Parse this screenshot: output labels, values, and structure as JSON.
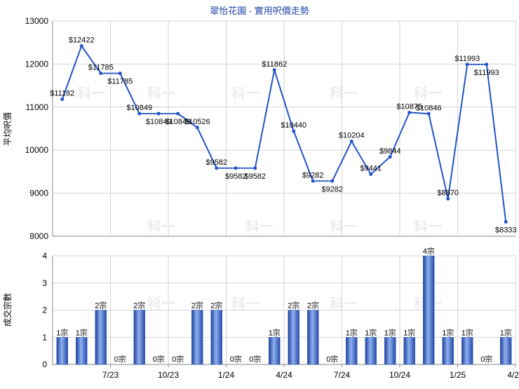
{
  "chart_data": [
    {
      "type": "line",
      "title": "翠怡花園 - 實用呎價走勢",
      "xlabel": "",
      "ylabel": "平均呎價",
      "ylim": [
        8000,
        13000
      ],
      "yticks": [
        "13000",
        "12000",
        "11000",
        "10000",
        "9000",
        "8000"
      ],
      "xticks": [
        "7/23",
        "10/23",
        "1/24",
        "4/24",
        "7/24",
        "10/24",
        "1/25",
        "4/25"
      ],
      "grid": true,
      "points": [
        {
          "v": 11182,
          "label": "$11182",
          "solid": true
        },
        {
          "v": 12422,
          "label": "$12422",
          "solid": true
        },
        {
          "v": 11785,
          "label": "$11785",
          "solid": true
        },
        {
          "v": 11785,
          "label": "$11785",
          "solid": false
        },
        {
          "v": 10849,
          "label": "$10849",
          "solid": true
        },
        {
          "v": 10849,
          "label": "$10849",
          "solid": false
        },
        {
          "v": 10849,
          "label": "$10849",
          "solid": false
        },
        {
          "v": 10526,
          "label": "$10526",
          "solid": true
        },
        {
          "v": 9582,
          "label": "$9582",
          "solid": true
        },
        {
          "v": 9582,
          "label": "$9582",
          "solid": false
        },
        {
          "v": 9582,
          "label": "$9582",
          "solid": false
        },
        {
          "v": 11862,
          "label": "$11862",
          "solid": true
        },
        {
          "v": 10440,
          "label": "$10440",
          "solid": true
        },
        {
          "v": 9282,
          "label": "$9282",
          "solid": true
        },
        {
          "v": 9282,
          "label": "$9282",
          "solid": false
        },
        {
          "v": 10204,
          "label": "$10204",
          "solid": true
        },
        {
          "v": 9441,
          "label": "$9441",
          "solid": true
        },
        {
          "v": 9844,
          "label": "$9844",
          "solid": true
        },
        {
          "v": 10875,
          "label": "$10875",
          "solid": true
        },
        {
          "v": 10846,
          "label": "$10846",
          "solid": true
        },
        {
          "v": 8870,
          "label": "$8870",
          "solid": true
        },
        {
          "v": 11993,
          "label": "$11993",
          "solid": true
        },
        {
          "v": 11993,
          "label": "$11993",
          "solid": false
        },
        {
          "v": 8333,
          "label": "$8333",
          "solid": true
        }
      ],
      "line_color": "#2255c8",
      "watermark": "科一"
    },
    {
      "type": "bar",
      "title": "",
      "xlabel": "",
      "ylabel": "成交宗數",
      "ylim": [
        0,
        4
      ],
      "yticks": [
        "4",
        "3",
        "2",
        "1",
        "0"
      ],
      "xticks": [
        "7/23",
        "10/23",
        "1/24",
        "4/24",
        "7/24",
        "10/24",
        "1/25",
        "4/25"
      ],
      "grid": true,
      "values": [
        1,
        1,
        2,
        0,
        2,
        0,
        0,
        2,
        2,
        0,
        0,
        1,
        2,
        2,
        0,
        1,
        1,
        1,
        1,
        4,
        1,
        1,
        0,
        1
      ],
      "labels": [
        "1宗",
        "1宗",
        "2宗",
        "0宗",
        "2宗",
        "0宗",
        "0宗",
        "2宗",
        "2宗",
        "0宗",
        "0宗",
        "1宗",
        "2宗",
        "2宗",
        "0宗",
        "1宗",
        "1宗",
        "1宗",
        "1宗",
        "4宗",
        "1宗",
        "1宗",
        "0宗",
        "1宗"
      ],
      "bar_color": "#3a66c6",
      "watermark": "科一"
    }
  ]
}
